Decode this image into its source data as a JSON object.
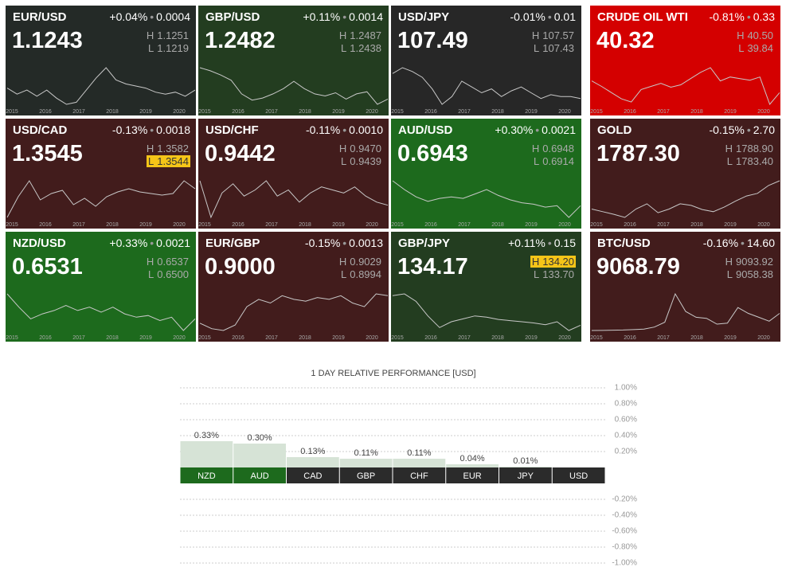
{
  "tiles": [
    {
      "name": "EUR/USD",
      "price": "1.1243",
      "change_pct": "+0.04%",
      "change": "0.0004",
      "high": "1.1251",
      "low": "1.1219",
      "color": "#242a27",
      "spark": [
        1.13,
        1.1,
        1.12,
        1.09,
        1.12,
        1.08,
        1.05,
        1.06,
        1.12,
        1.18,
        1.23,
        1.17,
        1.15,
        1.14,
        1.13,
        1.11,
        1.1,
        1.11,
        1.09,
        1.12
      ]
    },
    {
      "name": "GBP/USD",
      "price": "1.2482",
      "change_pct": "+0.11%",
      "change": "0.0014",
      "high": "1.2487",
      "low": "1.2438",
      "color": "#233d20",
      "spark": [
        1.55,
        1.52,
        1.48,
        1.43,
        1.3,
        1.24,
        1.26,
        1.3,
        1.35,
        1.42,
        1.35,
        1.3,
        1.28,
        1.31,
        1.25,
        1.3,
        1.32,
        1.2,
        1.25
      ]
    },
    {
      "name": "USD/JPY",
      "price": "107.49",
      "change_pct": "-0.01%",
      "change": "0.01",
      "high": "107.57",
      "low": "107.43",
      "color": "#272727",
      "spark": [
        120,
        123,
        121,
        118,
        112,
        104,
        108,
        116,
        113,
        110,
        112,
        108,
        111,
        113,
        110,
        107,
        109,
        108,
        108,
        107
      ]
    },
    {
      "name": "CRUDE OIL WTI",
      "price": "40.32",
      "change_pct": "-0.81%",
      "change": "0.33",
      "high": "40.50",
      "low": "39.84",
      "color": "#d40000",
      "spark": [
        55,
        48,
        40,
        32,
        28,
        44,
        48,
        52,
        47,
        50,
        58,
        66,
        72,
        55,
        60,
        58,
        56,
        60,
        25,
        40
      ]
    },
    {
      "name": "USD/CAD",
      "price": "1.3545",
      "change_pct": "-0.13%",
      "change": "0.0018",
      "high": "1.3582",
      "low": "1.3544",
      "highlight": "low",
      "color": "#421c1c",
      "spark": [
        1.17,
        1.3,
        1.4,
        1.28,
        1.32,
        1.34,
        1.25,
        1.29,
        1.24,
        1.3,
        1.33,
        1.35,
        1.33,
        1.32,
        1.31,
        1.32,
        1.4,
        1.35
      ]
    },
    {
      "name": "USD/CHF",
      "price": "0.9442",
      "change_pct": "-0.11%",
      "change": "0.0010",
      "high": "0.9470",
      "low": "0.9439",
      "color": "#421c1c",
      "spark": [
        1.02,
        0.9,
        0.98,
        1.01,
        0.97,
        0.99,
        1.02,
        0.97,
        0.99,
        0.95,
        0.98,
        1.0,
        0.99,
        0.98,
        1.0,
        0.97,
        0.95,
        0.94
      ]
    },
    {
      "name": "AUD/USD",
      "price": "0.6943",
      "change_pct": "+0.30%",
      "change": "0.0021",
      "high": "0.6948",
      "low": "0.6914",
      "color": "#1d6a1d",
      "spark": [
        0.86,
        0.8,
        0.75,
        0.72,
        0.74,
        0.75,
        0.74,
        0.77,
        0.8,
        0.76,
        0.73,
        0.71,
        0.7,
        0.68,
        0.69,
        0.61,
        0.69
      ]
    },
    {
      "name": "GOLD",
      "price": "1787.30",
      "change_pct": "-0.15%",
      "change": "2.70",
      "high": "1788.90",
      "low": "1783.40",
      "color": "#421c1c",
      "spark": [
        1250,
        1200,
        1150,
        1090,
        1250,
        1350,
        1180,
        1250,
        1350,
        1320,
        1240,
        1200,
        1290,
        1400,
        1500,
        1550,
        1700,
        1790
      ]
    },
    {
      "name": "NZD/USD",
      "price": "0.6531",
      "change_pct": "+0.33%",
      "change": "0.0021",
      "high": "0.6537",
      "low": "0.6500",
      "color": "#1d6a1d",
      "spark": [
        0.8,
        0.72,
        0.65,
        0.68,
        0.7,
        0.73,
        0.7,
        0.72,
        0.69,
        0.72,
        0.68,
        0.66,
        0.67,
        0.64,
        0.66,
        0.58,
        0.65
      ]
    },
    {
      "name": "EUR/GBP",
      "price": "0.9000",
      "change_pct": "-0.15%",
      "change": "0.0013",
      "high": "0.9029",
      "low": "0.8994",
      "color": "#421c1c",
      "spark": [
        0.75,
        0.72,
        0.71,
        0.74,
        0.84,
        0.88,
        0.86,
        0.9,
        0.88,
        0.87,
        0.89,
        0.88,
        0.9,
        0.86,
        0.84,
        0.91,
        0.9
      ]
    },
    {
      "name": "GBP/JPY",
      "price": "134.17",
      "change_pct": "+0.11%",
      "change": "0.15",
      "high": "134.20",
      "low": "133.70",
      "highlight": "high",
      "color": "#233d20",
      "spark": [
        185,
        188,
        175,
        150,
        130,
        140,
        145,
        150,
        148,
        144,
        142,
        140,
        138,
        135,
        140,
        125,
        134
      ]
    },
    {
      "name": "BTC/USD",
      "price": "9068.79",
      "change_pct": "-0.16%",
      "change": "14.60",
      "high": "9093.92",
      "low": "9058.38",
      "color": "#421c1c",
      "spark": [
        250,
        300,
        400,
        500,
        700,
        1000,
        2000,
        4500,
        19000,
        10000,
        7000,
        6500,
        3500,
        4000,
        12000,
        9000,
        7000,
        5000,
        9000
      ]
    }
  ],
  "high_label": "H",
  "low_label": "L",
  "years": [
    "2015",
    "2016",
    "2017",
    "2018",
    "2019",
    "2020"
  ],
  "chart_data": {
    "type": "bar",
    "title": "1 DAY RELATIVE PERFORMANCE  [USD]",
    "categories": [
      "NZD",
      "AUD",
      "CAD",
      "GBP",
      "CHF",
      "EUR",
      "JPY",
      "USD"
    ],
    "category_colors": [
      "#1d6a1d",
      "#1d6a1d",
      "#2b2b2b",
      "#2b2b2b",
      "#2b2b2b",
      "#2b2b2b",
      "#2b2b2b",
      "#2b2b2b"
    ],
    "values": [
      0.33,
      0.3,
      0.13,
      0.11,
      0.11,
      0.04,
      0.01,
      0
    ],
    "value_labels": [
      "0.33%",
      "0.30%",
      "0.13%",
      "0.11%",
      "0.11%",
      "0.04%",
      "0.01%",
      null
    ],
    "color": "#d6e3d6",
    "ylim": [
      -1,
      1
    ],
    "yticks": [
      {
        "value": 1,
        "label": "1.00%"
      },
      {
        "value": 0.8,
        "label": "0.80%"
      },
      {
        "value": 0.6,
        "label": "0.60%"
      },
      {
        "value": 0.4,
        "label": "0.40%"
      },
      {
        "value": 0.2,
        "label": "0.20%"
      },
      {
        "value": -0.2,
        "label": "-0.20%"
      },
      {
        "value": -0.4,
        "label": "-0.40%"
      },
      {
        "value": -0.6,
        "label": "-0.60%"
      },
      {
        "value": -0.8,
        "label": "-0.80%"
      },
      {
        "value": -1,
        "label": "-1.00%"
      }
    ],
    "grid": true
  }
}
